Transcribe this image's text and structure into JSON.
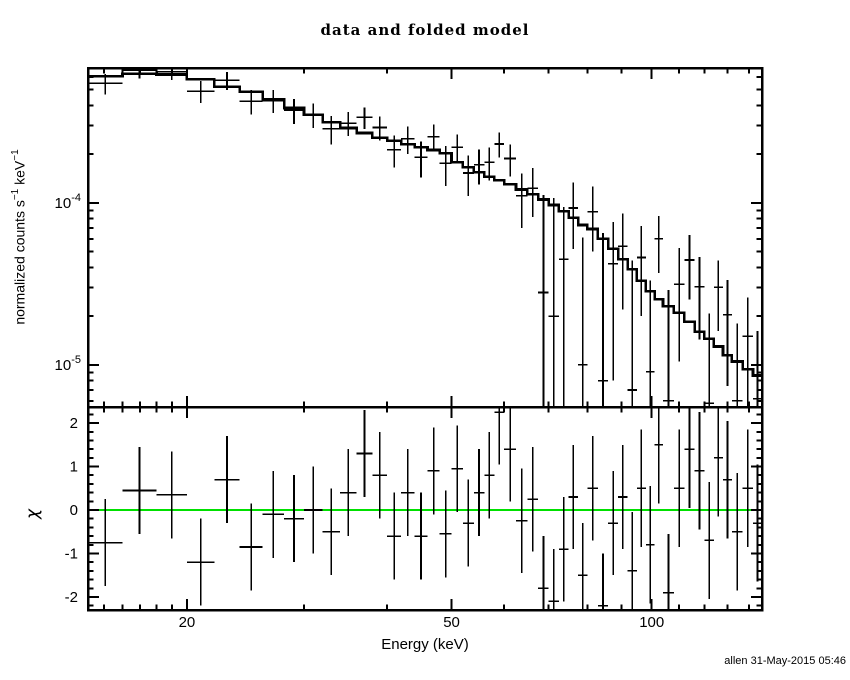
{
  "window": {
    "background": "#ffffff",
    "foreground": "#000000"
  },
  "footer": {
    "timestamp": "allen 31-May-2015 05:46"
  },
  "chart_data": {
    "type": "line",
    "plot_style": "xspec-spectrum-with-residuals",
    "title": "data and folded model",
    "xlabel": "Energy (keV)",
    "grid": "off",
    "legend": "none",
    "top_panel": {
      "ylabel": "normalized counts s^-1 keV^-1",
      "ylabel_parts": {
        "base1": "normalized counts s",
        "sup1": "−1",
        "base2": " keV",
        "sup2": "−1"
      },
      "xscale": "log",
      "yscale": "log",
      "xlim": [
        14.2,
        146.5
      ],
      "ylim": [
        5.5e-06,
        0.00068
      ],
      "x_ticks": [
        {
          "v": 20,
          "label": "20"
        },
        {
          "v": 50,
          "label": "50"
        },
        {
          "v": 100,
          "label": "100"
        }
      ],
      "x_minor_ticks": [
        15,
        16,
        17,
        18,
        19,
        30,
        40,
        60,
        70,
        80,
        90,
        110,
        120,
        130,
        140
      ],
      "y_ticks": [
        {
          "v": 0.0001,
          "base": "10",
          "exp": "-4"
        },
        {
          "v": 1e-05,
          "base": "10",
          "exp": "-5"
        }
      ],
      "y_minor_ticks": [
        6e-06,
        7e-06,
        8e-06,
        9e-06,
        2e-05,
        3e-05,
        4e-05,
        5e-05,
        6e-05,
        7e-05,
        8e-05,
        9e-05,
        0.0002,
        0.0003,
        0.0004,
        0.0005,
        0.0006
      ],
      "bin_edges_keV": [
        14.2,
        16,
        18,
        20,
        22,
        24,
        26,
        28,
        30,
        32,
        34,
        36,
        38,
        40,
        42,
        44,
        46,
        48,
        50,
        52,
        54,
        56,
        58,
        60,
        62.5,
        65,
        67.5,
        70,
        72.5,
        75,
        77.5,
        80,
        83,
        86,
        89,
        92,
        95,
        98,
        101,
        104,
        108,
        112,
        116,
        120,
        124,
        128,
        132,
        137,
        142,
        146.5
      ],
      "model": [
        0.000605,
        0.000625,
        0.00062,
        0.00058,
        0.00052,
        0.000485,
        0.000435,
        0.000385,
        0.00035,
        0.000315,
        0.00029,
        0.00027,
        0.000252,
        0.000242,
        0.00023,
        0.00022,
        0.000212,
        0.000203,
        0.000178,
        0.000166,
        0.000155,
        0.000145,
        0.000138,
        0.00013,
        0.000121,
        0.000113,
        0.000105,
        9.7e-05,
        8.9e-05,
        8.1e-05,
        7.3e-05,
        6.9e-05,
        6e-05,
        5.2e-05,
        4.5e-05,
        3.9e-05,
        3.3e-05,
        2.85e-05,
        2.55e-05,
        2.3e-05,
        2.1e-05,
        1.85e-05,
        1.6e-05,
        1.45e-05,
        1.3e-05,
        1.15e-05,
        1.05e-05,
        9.4e-06,
        8.6e-06
      ],
      "data": [
        0.000546,
        0.000659,
        0.000646,
        0.00049,
        0.000571,
        0.000423,
        0.000428,
        0.000372,
        0.00035,
        0.000287,
        0.000311,
        0.000337,
        0.000292,
        0.000213,
        0.000249,
        0.000191,
        0.000256,
        0.000176,
        0.00022,
        0.000153,
        0.000172,
        0.000178,
        0.000231,
        0.000188,
        0.000111,
        0.000123,
        2.8e-05,
        2e-05,
        4.5e-05,
        9.3e-05,
        1e-05,
        8.8e-05,
        8e-06,
        4.2e-05,
        5.4e-05,
        7e-06,
        4.6e-05,
        9.1e-06,
        6e-05,
        6e-06,
        3.15e-05,
        4.44e-05,
        3.04e-05,
        5.8e-06,
        3.02e-05,
        2.04e-05,
        6e-06,
        1.5e-05,
        6.2e-06
      ],
      "err": [
        7.9e-05,
        7.5e-05,
        7.4e-05,
        7.5e-05,
        7.3e-05,
        7.3e-05,
        7e-05,
        6.5e-05,
        6e-05,
        5.7e-05,
        5.2e-05,
        5.1e-05,
        5e-05,
        4.8e-05,
        4.8e-05,
        4.8e-05,
        4.9e-05,
        4.9e-05,
        4.5e-05,
        4.3e-05,
        4.2e-05,
        4.1e-05,
        4.1e-05,
        4.2e-05,
        4.1e-05,
        4.1e-05,
        8.4e-05,
        8.7e-05,
        4.9e-05,
        4.1e-05,
        5.1e-05,
        3.8e-05,
        5.7e-05,
        3.4e-05,
        3.2e-05,
        3.7e-05,
        2.6e-05,
        2.4e-05,
        2.3e-05,
        2.3e-05,
        2.1e-05,
        1.9e-05,
        1.6e-05,
        1.5e-05,
        1.4e-05,
        1.3e-05,
        1.2e-05,
        1.1e-05,
        1e-05
      ]
    },
    "bottom_panel": {
      "ylabel": "χ",
      "yscale": "linear",
      "ylim": [
        -2.3,
        2.37
      ],
      "y_ticks": [
        {
          "v": 2,
          "label": "2"
        },
        {
          "v": 1,
          "label": "1"
        },
        {
          "v": 0,
          "label": "0"
        },
        {
          "v": -1,
          "label": "-1"
        },
        {
          "v": -2,
          "label": "-2"
        }
      ],
      "y_minor_ticks": [
        -2.2,
        -1.8,
        -1.6,
        -1.4,
        -1.2,
        -0.8,
        -0.6,
        -0.4,
        -0.2,
        0.2,
        0.4,
        0.6,
        0.8,
        1.2,
        1.4,
        1.6,
        1.8,
        2.2
      ],
      "zero_line_color": "#00e000",
      "chi": [
        -0.75,
        0.45,
        0.35,
        -1.2,
        0.7,
        -0.85,
        -0.1,
        -0.2,
        0.0,
        -0.5,
        0.4,
        1.3,
        0.8,
        -0.6,
        0.4,
        -0.6,
        0.9,
        -0.55,
        0.95,
        -0.3,
        0.4,
        0.8,
        2.25,
        1.4,
        -0.25,
        0.25,
        -1.8,
        -2.1,
        -0.9,
        0.3,
        -1.5,
        0.5,
        -2.2,
        -0.3,
        0.3,
        -1.4,
        0.5,
        -0.8,
        1.5,
        -1.9,
        0.5,
        1.4,
        0.9,
        -0.7,
        1.2,
        0.7,
        -0.5,
        0.5,
        -0.3
      ],
      "chi_err": [
        1,
        1,
        1,
        1,
        1,
        1,
        1,
        1,
        1,
        1,
        1,
        1,
        1,
        1,
        1,
        1,
        1,
        1,
        1,
        1,
        1,
        1,
        1.2,
        1.2,
        1.2,
        1.2,
        1.2,
        1.2,
        1.2,
        1.2,
        1.2,
        1.2,
        1.2,
        1.2,
        1.2,
        1.35,
        1.35,
        1.35,
        1.35,
        1.35,
        1.35,
        1.35,
        1.35,
        1.35,
        1.35,
        1.35,
        1.35,
        1.35,
        1.35
      ]
    }
  }
}
